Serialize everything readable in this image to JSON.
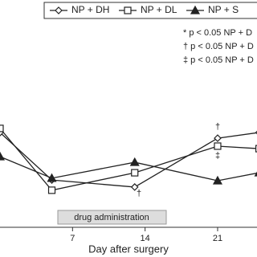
{
  "chart_data": {
    "type": "line",
    "legend": [
      "NP + DH",
      "NP + DL",
      "NP + S"
    ],
    "x_label": "Day after surgery",
    "annotations": {
      "sig1": "* p < 0.05 NP + D",
      "sig2": "† p < 0.05 NP + D",
      "sig3": "‡ p < 0.05 NP + D",
      "drug": "drug administration",
      "dag1": "†",
      "dag2": "†",
      "ddag": "‡"
    },
    "x": [
      0,
      5,
      13,
      21,
      25
    ],
    "xlim": [
      0,
      24.8
    ],
    "xticks": [
      7,
      14,
      21
    ],
    "ylim": [
      0,
      100
    ],
    "series": [
      {
        "name": "NP + DH",
        "color": "#222222",
        "marker": "diamond",
        "values": [
          41.7,
          20.8,
          17.7,
          39.2,
          41.7
        ]
      },
      {
        "name": "NP + DL",
        "color": "#222222",
        "marker": "square",
        "values": [
          43.5,
          16.3,
          24,
          35.7,
          34.6
        ]
      },
      {
        "name": "NP + S",
        "color": "#222222",
        "marker": "triangle",
        "values": [
          31.1,
          21.6,
          28.6,
          20.5,
          24
        ]
      }
    ]
  }
}
